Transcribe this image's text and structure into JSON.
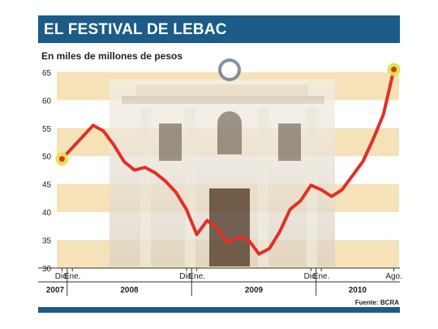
{
  "header": {
    "title": "EL FESTIVAL DE LEBAC"
  },
  "footer": {
    "source": "Fuente: BCRA"
  },
  "colors": {
    "brand_blue": "#1b5c88",
    "band": "#f6e2b8",
    "line": "#e23028",
    "marker": "#d8e64a"
  },
  "chart_data": {
    "type": "line",
    "title": "EL FESTIVAL DE LEBAC",
    "subtitle": "En miles de millones de pesos",
    "xlabel": "",
    "ylabel": "",
    "ylim": [
      30,
      66
    ],
    "yticks": [
      30,
      35,
      40,
      45,
      50,
      55,
      60,
      65
    ],
    "grid": "alternating horizontal bands",
    "x_tick_labels": [
      {
        "t": 0,
        "label": "Dic."
      },
      {
        "t": 1,
        "label": "Ene."
      },
      {
        "t": 12,
        "label": "Dic."
      },
      {
        "t": 13,
        "label": "Ene."
      },
      {
        "t": 24,
        "label": "Dic."
      },
      {
        "t": 25,
        "label": "Ene."
      },
      {
        "t": 32,
        "label": "Ago."
      }
    ],
    "years": [
      {
        "label": "2007",
        "start": -0.5,
        "end": 0.5
      },
      {
        "label": "2008",
        "start": 0.5,
        "end": 12.5
      },
      {
        "label": "2009",
        "start": 12.5,
        "end": 24.5
      },
      {
        "label": "2010",
        "start": 24.5,
        "end": 32.5
      }
    ],
    "x_range": [
      -0.5,
      32.5
    ],
    "series": [
      {
        "x": [
          0,
          1,
          2,
          3,
          4,
          5,
          6,
          7,
          8,
          9,
          10,
          11,
          12,
          13,
          14,
          15,
          16,
          17,
          18,
          19,
          20,
          21,
          22,
          23,
          24,
          25,
          26,
          27,
          28,
          29,
          30,
          31,
          32
        ],
        "values": [
          49.5,
          51.5,
          53.5,
          55.5,
          54.5,
          52.0,
          49.0,
          47.5,
          48.0,
          47.0,
          45.5,
          43.5,
          40.5,
          36.0,
          38.5,
          37.0,
          34.5,
          35.5,
          35.0,
          32.5,
          33.5,
          36.5,
          40.5,
          42.0,
          44.8,
          44.0,
          42.8,
          44.0,
          46.5,
          49.0,
          53.0,
          57.5,
          65.5
        ]
      }
    ],
    "markers": [
      {
        "x": 0,
        "value": 49.5
      },
      {
        "x": 32,
        "value": 65.5
      }
    ]
  }
}
